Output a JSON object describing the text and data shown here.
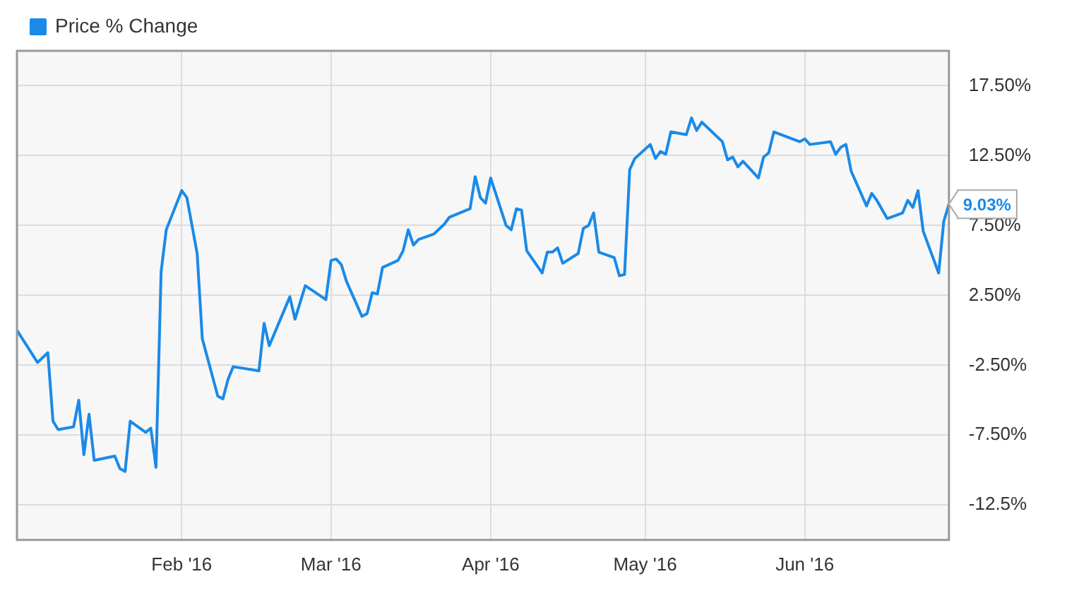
{
  "chart_data": {
    "type": "line",
    "x": [
      "2015-12-31",
      "2016-01-04",
      "2016-01-06",
      "2016-01-07",
      "2016-01-08",
      "2016-01-11",
      "2016-01-12",
      "2016-01-13",
      "2016-01-14",
      "2016-01-15",
      "2016-01-19",
      "2016-01-20",
      "2016-01-21",
      "2016-01-22",
      "2016-01-25",
      "2016-01-26",
      "2016-01-27",
      "2016-01-28",
      "2016-01-29",
      "2016-02-01",
      "2016-02-02",
      "2016-02-04",
      "2016-02-05",
      "2016-02-08",
      "2016-02-09",
      "2016-02-10",
      "2016-02-11",
      "2016-02-16",
      "2016-02-17",
      "2016-02-18",
      "2016-02-22",
      "2016-02-23",
      "2016-02-25",
      "2016-02-29",
      "2016-03-01",
      "2016-03-02",
      "2016-03-03",
      "2016-03-04",
      "2016-03-07",
      "2016-03-08",
      "2016-03-09",
      "2016-03-10",
      "2016-03-11",
      "2016-03-14",
      "2016-03-15",
      "2016-03-16",
      "2016-03-17",
      "2016-03-18",
      "2016-03-21",
      "2016-03-23",
      "2016-03-24",
      "2016-03-28",
      "2016-03-29",
      "2016-03-30",
      "2016-03-31",
      "2016-04-01",
      "2016-04-04",
      "2016-04-05",
      "2016-04-06",
      "2016-04-07",
      "2016-04-08",
      "2016-04-11",
      "2016-04-12",
      "2016-04-13",
      "2016-04-14",
      "2016-04-15",
      "2016-04-18",
      "2016-04-19",
      "2016-04-20",
      "2016-04-21",
      "2016-04-22",
      "2016-04-25",
      "2016-04-26",
      "2016-04-27",
      "2016-04-28",
      "2016-04-29",
      "2016-05-02",
      "2016-05-03",
      "2016-05-04",
      "2016-05-05",
      "2016-05-06",
      "2016-05-09",
      "2016-05-10",
      "2016-05-11",
      "2016-05-12",
      "2016-05-16",
      "2016-05-17",
      "2016-05-18",
      "2016-05-19",
      "2016-05-20",
      "2016-05-23",
      "2016-05-24",
      "2016-05-25",
      "2016-05-26",
      "2016-05-31",
      "2016-06-01",
      "2016-06-02",
      "2016-06-06",
      "2016-06-07",
      "2016-06-08",
      "2016-06-09",
      "2016-06-10",
      "2016-06-13",
      "2016-06-14",
      "2016-06-15",
      "2016-06-17",
      "2016-06-20",
      "2016-06-21",
      "2016-06-22",
      "2016-06-23",
      "2016-06-24",
      "2016-06-27",
      "2016-06-28",
      "2016-06-29"
    ],
    "series": [
      {
        "name": "Price % Change",
        "color": "#1a8ae8",
        "values": [
          0.0,
          -2.3,
          -1.6,
          -6.5,
          -7.1,
          -6.9,
          -5.0,
          -8.9,
          -6.0,
          -9.3,
          -9.0,
          -9.9,
          -10.1,
          -6.5,
          -7.3,
          -7.0,
          -9.8,
          4.2,
          7.2,
          10.0,
          9.5,
          5.5,
          -0.6,
          -4.7,
          -4.9,
          -3.5,
          -2.6,
          -2.9,
          0.5,
          -1.1,
          2.4,
          0.8,
          3.2,
          2.2,
          5.0,
          5.1,
          4.7,
          3.5,
          1.0,
          1.2,
          2.7,
          2.6,
          4.5,
          5.0,
          5.7,
          7.2,
          6.1,
          6.5,
          6.9,
          7.6,
          8.1,
          8.7,
          11.0,
          9.5,
          9.1,
          10.9,
          7.5,
          7.2,
          8.7,
          8.6,
          5.7,
          4.1,
          5.6,
          5.6,
          5.9,
          4.8,
          5.5,
          7.3,
          7.5,
          8.4,
          5.6,
          5.2,
          3.9,
          4.0,
          11.5,
          12.3,
          13.3,
          12.3,
          12.8,
          12.6,
          14.2,
          14.0,
          15.2,
          14.3,
          14.9,
          13.5,
          12.2,
          12.4,
          11.7,
          12.1,
          10.9,
          12.4,
          12.7,
          14.2,
          13.5,
          13.7,
          13.3,
          13.5,
          12.6,
          13.1,
          13.3,
          11.4,
          8.9,
          9.8,
          9.3,
          8.0,
          8.4,
          9.3,
          8.8,
          10.0,
          7.1,
          4.1,
          7.8,
          9.03
        ]
      }
    ],
    "xlim": [
      "2015-12-31",
      "2016-06-29"
    ],
    "xticks": [
      {
        "value": "2016-02-01",
        "label": "Feb '16"
      },
      {
        "value": "2016-03-01",
        "label": "Mar '16"
      },
      {
        "value": "2016-04-01",
        "label": "Apr '16"
      },
      {
        "value": "2016-05-01",
        "label": "May '16"
      },
      {
        "value": "2016-06-01",
        "label": "Jun '16"
      }
    ],
    "ylim": [
      -15,
      20
    ],
    "yticks": [
      {
        "value": -12.5,
        "label": "-12.5%"
      },
      {
        "value": -7.5,
        "label": "-7.50%"
      },
      {
        "value": -2.5,
        "label": "-2.50%"
      },
      {
        "value": 2.5,
        "label": "2.50%"
      },
      {
        "value": 7.5,
        "label": "7.50%"
      },
      {
        "value": 12.5,
        "label": "12.50%"
      },
      {
        "value": 17.5,
        "label": "17.50%"
      }
    ],
    "annotations": [
      {
        "text": "9.03%",
        "x": "2016-06-29",
        "y": 9.03
      }
    ],
    "grid": true,
    "legend": "top left",
    "marker": "none",
    "line_style": "solid"
  }
}
